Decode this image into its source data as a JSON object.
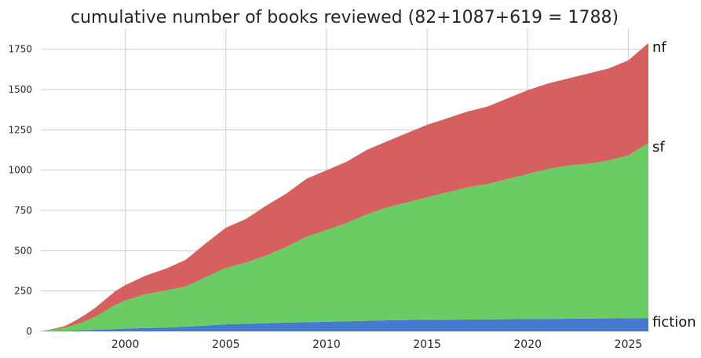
{
  "chart_data": {
    "type": "area",
    "stacked": true,
    "title": "cumulative number of books reviewed (82+1087+619 = 1788)",
    "xlabel": "",
    "ylabel": "",
    "xlim": [
      1995.8,
      2026.0
    ],
    "ylim": [
      0,
      1880
    ],
    "x_ticks": [
      2000,
      2005,
      2010,
      2015,
      2020,
      2025
    ],
    "y_ticks": [
      0,
      250,
      500,
      750,
      1000,
      1250,
      1500,
      1750
    ],
    "grid": true,
    "x": [
      1995.8,
      1996.5,
      1997,
      1997.5,
      1998,
      1998.5,
      1999,
      1999.5,
      2000,
      2001,
      2002,
      2003,
      2004,
      2005,
      2006,
      2007,
      2008,
      2009,
      2010,
      2011,
      2012,
      2013,
      2014,
      2015,
      2016,
      2017,
      2018,
      2019,
      2020,
      2021,
      2022,
      2023,
      2024,
      2025,
      2026
    ],
    "series": [
      {
        "name": "fiction",
        "color": "#4878d0",
        "values": [
          0,
          2,
          3,
          5,
          7,
          10,
          12,
          14,
          17,
          20,
          23,
          28,
          36,
          43,
          47,
          50,
          54,
          56,
          59,
          62,
          65,
          68,
          70,
          71,
          72,
          73,
          74,
          75,
          76,
          77,
          78,
          79,
          80,
          81,
          82
        ]
      },
      {
        "name": "sf",
        "color": "#6acc64",
        "values": [
          0,
          10,
          20,
          35,
          55,
          80,
          115,
          150,
          175,
          210,
          230,
          250,
          300,
          350,
          380,
          420,
          470,
          530,
          570,
          610,
          660,
          700,
          730,
          760,
          790,
          820,
          840,
          870,
          900,
          930,
          950,
          960,
          980,
          1010,
          1087
        ]
      },
      {
        "name": "nf",
        "color": "#d65f5f",
        "values": [
          0,
          5,
          10,
          25,
          40,
          55,
          70,
          85,
          95,
          115,
          135,
          165,
          210,
          250,
          270,
          310,
          330,
          360,
          370,
          380,
          400,
          410,
          430,
          450,
          460,
          470,
          480,
          500,
          520,
          530,
          540,
          560,
          570,
          590,
          619
        ]
      }
    ]
  }
}
